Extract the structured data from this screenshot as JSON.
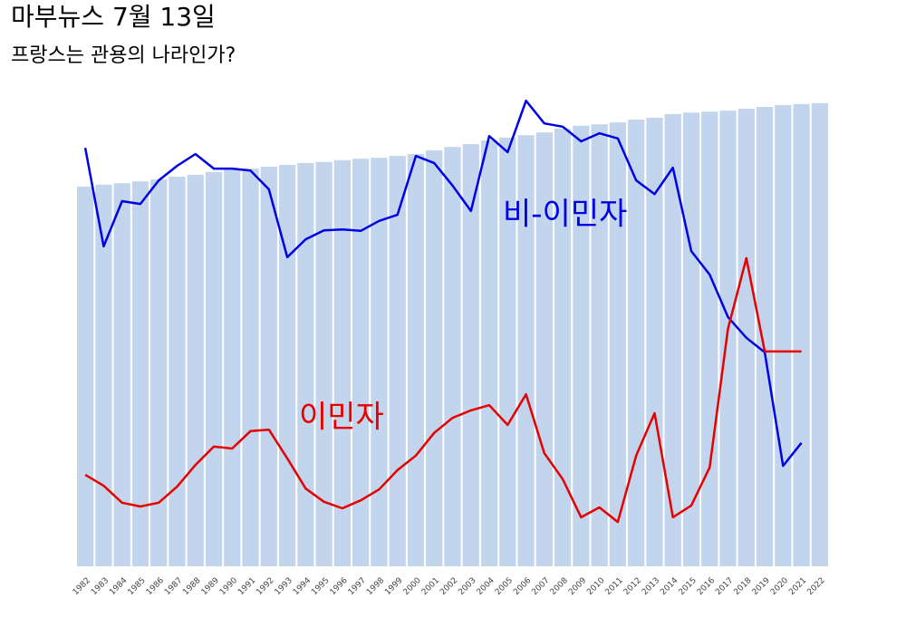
{
  "chart_data": {
    "type": "bar",
    "title": "마부뉴스 7월 13일",
    "subtitle": "프랑스는 관용의 나라인가?",
    "categories": [
      "1982",
      "1983",
      "1984",
      "1985",
      "1986",
      "1987",
      "1988",
      "1989",
      "1990",
      "1991",
      "1992",
      "1993",
      "1994",
      "1995",
      "1996",
      "1997",
      "1998",
      "1999",
      "2000",
      "2001",
      "2002",
      "2003",
      "2004",
      "2005",
      "2006",
      "2007",
      "2008",
      "2009",
      "2010",
      "2011",
      "2012",
      "2013",
      "2014",
      "2015",
      "2016",
      "2017",
      "2018",
      "2019",
      "2020",
      "2021",
      "2022"
    ],
    "values": [
      80.6,
      81.0,
      81.3,
      81.7,
      82.1,
      82.7,
      83.1,
      83.7,
      84.2,
      84.4,
      84.8,
      85.2,
      85.6,
      85.8,
      86.2,
      86.5,
      86.7,
      87.1,
      87.5,
      88.3,
      89.0,
      89.6,
      90.4,
      91.0,
      91.5,
      92.1,
      92.9,
      93.5,
      93.8,
      94.2,
      94.8,
      95.2,
      96.0,
      96.3,
      96.5,
      96.7,
      97.1,
      97.5,
      97.9,
      98.1,
      98.3
    ],
    "color": "#c2d5ec",
    "ylim": [
      0,
      100
    ],
    "series": [
      {
        "name": "비-이민자",
        "color": "#0000e6",
        "values": [
          88.8,
          67.9,
          77.5,
          76.9,
          81.9,
          85.0,
          87.5,
          84.4,
          84.4,
          84.0,
          80.0,
          65.6,
          69.4,
          71.3,
          71.5,
          71.2,
          73.3,
          74.6,
          87.1,
          85.6,
          80.8,
          75.4,
          91.3,
          87.9,
          98.8,
          94.0,
          93.3,
          90.2,
          91.9,
          90.8,
          81.9,
          79.0,
          84.6,
          66.9,
          61.9,
          52.9,
          48.5,
          45.4,
          21.3,
          26.2,
          null
        ]
      },
      {
        "name": "이민자",
        "color": "#e60000",
        "values": [
          19.4,
          17.1,
          13.5,
          12.7,
          13.5,
          16.9,
          21.5,
          25.4,
          25.0,
          28.7,
          29.0,
          22.9,
          16.5,
          13.7,
          12.3,
          14.0,
          16.3,
          20.4,
          23.5,
          28.3,
          31.5,
          33.1,
          34.2,
          30.0,
          36.5,
          24.0,
          18.5,
          10.4,
          12.5,
          9.4,
          23.5,
          32.5,
          10.4,
          12.9,
          21.0,
          50.4,
          65.4,
          45.6,
          45.6,
          45.6,
          null
        ]
      }
    ]
  }
}
